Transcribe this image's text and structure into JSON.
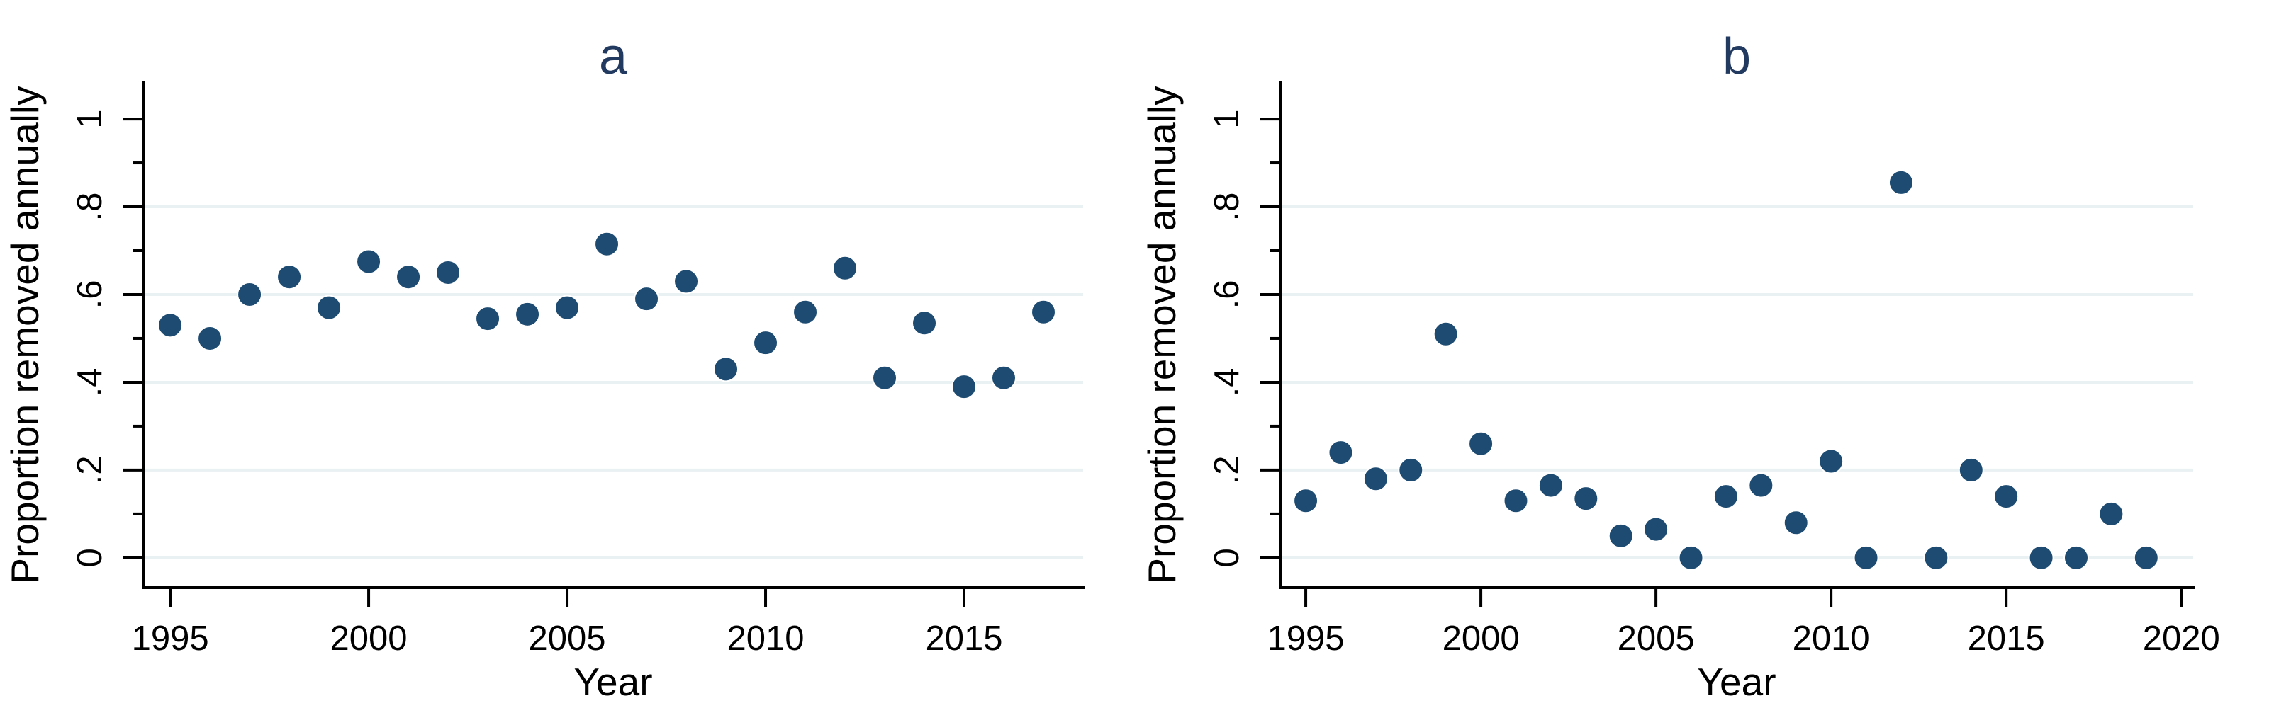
{
  "figure": {
    "background": "#ffffff",
    "dot_color": "#1d4b72",
    "dot_outline": "#ffffff",
    "title_color": "#233a60",
    "grid_color": "#e9f1f3",
    "axis_color": "#000000"
  },
  "chart_data": [
    {
      "type": "scatter",
      "title": "a",
      "xlabel": "Year",
      "ylabel": "Proportion removed annually",
      "legend": "none",
      "grid": "horizontal",
      "xlim": [
        1994.32,
        2018.0
      ],
      "ylim": [
        -0.068,
        1.084
      ],
      "x_ticks": [
        1995,
        2000,
        2005,
        2010,
        2015
      ],
      "y_ticks": [
        {
          "value": 0,
          "label": "0"
        },
        {
          "value": 0.2,
          "label": ".2"
        },
        {
          "value": 0.4,
          "label": ".4"
        },
        {
          "value": 0.6,
          "label": ".6"
        },
        {
          "value": 0.8,
          "label": ".8"
        },
        {
          "value": 1,
          "label": "1"
        }
      ],
      "y_minor_ticks": [
        0.1,
        0.3,
        0.5,
        0.7,
        0.9
      ],
      "grid_values": [
        0,
        0.2,
        0.4,
        0.6,
        0.8
      ],
      "x": [
        1995,
        1996,
        1997,
        1998,
        1999,
        2000,
        2001,
        2002,
        2003,
        2004,
        2005,
        2006,
        2007,
        2008,
        2009,
        2010,
        2011,
        2012,
        2013,
        2014,
        2015,
        2016,
        2017
      ],
      "y": [
        0.53,
        0.5,
        0.6,
        0.64,
        0.57,
        0.675,
        0.64,
        0.65,
        0.545,
        0.555,
        0.57,
        0.715,
        0.59,
        0.63,
        0.43,
        0.49,
        0.56,
        0.66,
        0.41,
        0.535,
        0.39,
        0.41,
        0.56
      ]
    },
    {
      "type": "scatter",
      "title": "b",
      "xlabel": "Year",
      "ylabel": "Proportion removed annually",
      "legend": "none",
      "grid": "horizontal",
      "xlim": [
        1994.27,
        2020.34
      ],
      "ylim": [
        -0.068,
        1.084
      ],
      "x_ticks": [
        1995,
        2000,
        2005,
        2010,
        2015,
        2020
      ],
      "y_ticks": [
        {
          "value": 0,
          "label": "0"
        },
        {
          "value": 0.2,
          "label": ".2"
        },
        {
          "value": 0.4,
          "label": ".4"
        },
        {
          "value": 0.6,
          "label": ".6"
        },
        {
          "value": 0.8,
          "label": ".8"
        },
        {
          "value": 1,
          "label": "1"
        }
      ],
      "y_minor_ticks": [
        0.1,
        0.3,
        0.5,
        0.7,
        0.9
      ],
      "grid_values": [
        0,
        0.2,
        0.4,
        0.6,
        0.8
      ],
      "x": [
        1995,
        1996,
        1997,
        1998,
        1999,
        2000,
        2001,
        2002,
        2003,
        2004,
        2005,
        2006,
        2007,
        2008,
        2009,
        2010,
        2011,
        2012,
        2013,
        2014,
        2015,
        2016,
        2017,
        2018,
        2019
      ],
      "y": [
        0.13,
        0.24,
        0.18,
        0.2,
        0.51,
        0.26,
        0.13,
        0.165,
        0.135,
        0.05,
        0.065,
        0.0,
        0.14,
        0.165,
        0.08,
        0.22,
        0.0,
        0.855,
        0.0,
        0.2,
        0.14,
        0.0,
        0.0,
        0.1,
        0.0
      ]
    }
  ]
}
